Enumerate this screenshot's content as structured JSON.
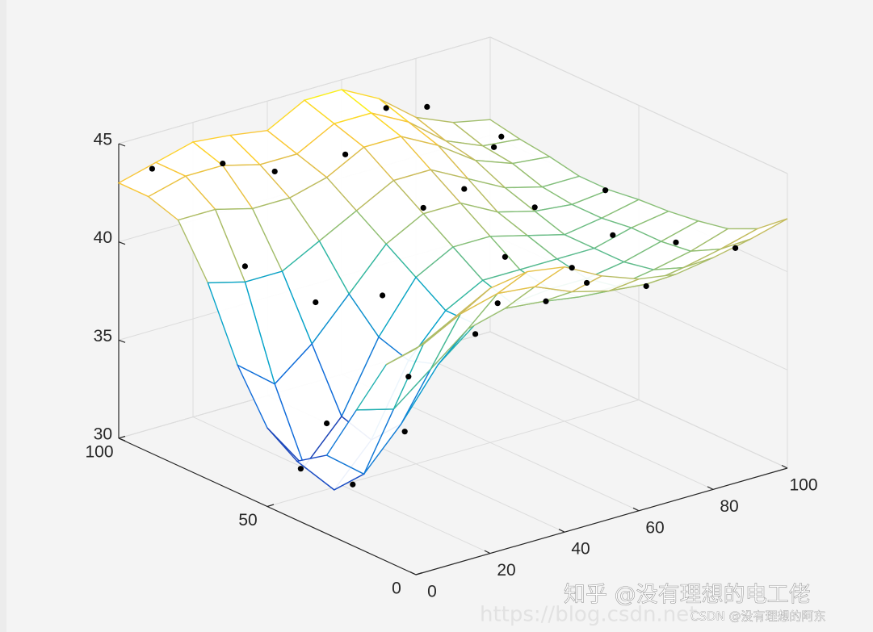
{
  "chart_data": {
    "type": "surface3d",
    "colormap": "parula",
    "grid": true,
    "xlim": [
      0,
      100
    ],
    "ylim": [
      0,
      100
    ],
    "zlim": [
      30,
      45
    ],
    "xticks": [
      0,
      20,
      40,
      60,
      80,
      100
    ],
    "yticks": [
      0,
      50,
      100
    ],
    "zticks": [
      30,
      35,
      40,
      45
    ],
    "x": [
      0,
      10,
      20,
      30,
      40,
      50,
      60,
      70,
      80,
      90,
      100
    ],
    "y": [
      0,
      10,
      20,
      30,
      40,
      50,
      60,
      70,
      80,
      90,
      100
    ],
    "z": [
      [
        41.5,
        42.5,
        43.5,
        43.8,
        43.5,
        42.5,
        41.8,
        41.5,
        41.8,
        42.2,
        42.7
      ],
      [
        40.0,
        40.5,
        41.5,
        42.0,
        41.8,
        41.0,
        40.5,
        40.3,
        40.6,
        41.0,
        41.5
      ],
      [
        37.0,
        36.5,
        38.0,
        39.5,
        40.0,
        39.8,
        39.5,
        39.5,
        39.8,
        40.2,
        40.8
      ],
      [
        34.0,
        32.5,
        34.5,
        37.0,
        38.5,
        39.0,
        39.2,
        39.2,
        39.5,
        40.0,
        40.5
      ],
      [
        33.0,
        31.0,
        33.0,
        36.5,
        38.5,
        39.5,
        39.5,
        39.5,
        39.5,
        40.0,
        40.3
      ],
      [
        34.0,
        31.5,
        33.5,
        37.0,
        39.5,
        40.5,
        40.5,
        40.0,
        39.5,
        39.8,
        40.2
      ],
      [
        36.5,
        35.0,
        36.5,
        38.5,
        40.5,
        41.5,
        41.5,
        40.5,
        40.0,
        39.8,
        40.0
      ],
      [
        40.0,
        39.5,
        39.5,
        40.5,
        41.5,
        42.5,
        42.5,
        41.5,
        40.5,
        40.0,
        40.0
      ],
      [
        42.5,
        42.5,
        42.0,
        42.0,
        42.5,
        43.5,
        43.5,
        42.5,
        41.2,
        40.5,
        40.3
      ],
      [
        43.0,
        43.5,
        43.5,
        43.0,
        43.0,
        44.0,
        44.0,
        43.0,
        41.5,
        40.7,
        40.5
      ],
      [
        43.0,
        43.5,
        44.0,
        43.8,
        43.5,
        44.5,
        44.5,
        43.5,
        42.0,
        41.2,
        40.8
      ]
    ],
    "points": {
      "color": "#000000",
      "x": [
        5,
        20,
        30,
        45,
        60,
        75,
        85,
        95,
        10,
        25,
        35,
        50,
        65,
        80,
        95,
        5,
        15,
        25,
        40,
        55,
        70,
        90,
        10,
        30,
        50,
        70,
        90,
        20,
        60,
        85
      ],
      "y": [
        95,
        90,
        85,
        80,
        85,
        90,
        80,
        90,
        70,
        65,
        55,
        60,
        65,
        60,
        55,
        45,
        40,
        35,
        30,
        25,
        35,
        25,
        15,
        10,
        5,
        10,
        5,
        55,
        45,
        40
      ],
      "z": [
        43.8,
        43.6,
        43,
        43.4,
        44.6,
        43.5,
        41.6,
        40.9,
        40.3,
        38,
        38.5,
        41.8,
        41.6,
        40.2,
        40.6,
        32,
        31,
        33.5,
        38,
        39.2,
        39.4,
        40.3,
        38.5,
        41.5,
        41.8,
        40.2,
        41.4,
        32.8,
        39.8,
        39.9
      ]
    }
  },
  "watermarks": [
    "知乎 @没有理想的电工佬",
    "CSDN @没有理想的阿东",
    "https://blog.csdn.net"
  ]
}
